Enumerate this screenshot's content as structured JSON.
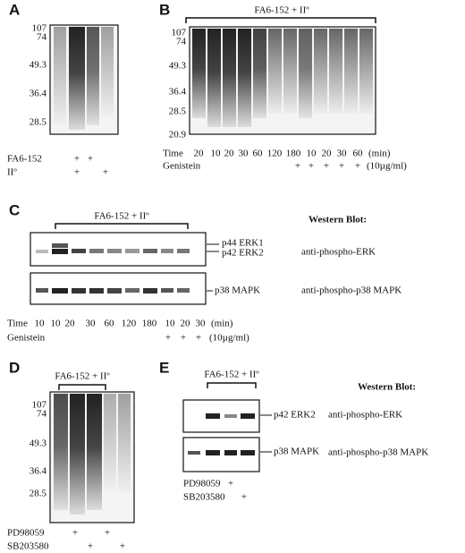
{
  "panels": {
    "a": {
      "label": "A",
      "markers": [
        "107",
        "74",
        "49.3",
        "36.4",
        "28.5"
      ],
      "rows": [
        {
          "label": "FA6-152",
          "marks": [
            "+",
            "+"
          ]
        },
        {
          "label": "IIº",
          "marks": [
            "+",
            "+"
          ]
        }
      ]
    },
    "b": {
      "label": "B",
      "title": "FA6-152 + IIº",
      "markers": [
        "107",
        "74",
        "49.3",
        "36.4",
        "28.5",
        "20.9"
      ],
      "time_label": "Time",
      "times": [
        "20",
        "10",
        "20",
        "30",
        "60",
        "120",
        "180",
        "10",
        "20",
        "30",
        "60"
      ],
      "time_unit": "(min)",
      "treatment": "Genistein",
      "treatment_marks": [
        "+",
        "+",
        "+",
        "+",
        "+"
      ],
      "dose": "(10µg/ml)"
    },
    "c": {
      "label": "C",
      "title": "FA6-152 + IIº",
      "bands": [
        "p44 ERK1",
        "p42 ERK2",
        "p38 MAPK"
      ],
      "method": "Western Blot:",
      "antibodies": [
        "anti-phospho-ERK",
        "anti-phospho-p38 MAPK"
      ],
      "time_label": "Time",
      "times": [
        "10",
        "10",
        "20",
        "30",
        "60",
        "120",
        "180",
        "10",
        "20",
        "30"
      ],
      "time_unit": "(min)",
      "treatment": "Genistein",
      "treatment_marks": [
        "+",
        "+",
        "+"
      ],
      "dose": "(10µg/ml)"
    },
    "d": {
      "label": "D",
      "title": "FA6-152 + IIº",
      "markers": [
        "107",
        "74",
        "49.3",
        "36.4",
        "28.5"
      ],
      "rows": [
        {
          "label": "PD98059",
          "marks": [
            "+",
            "+"
          ]
        },
        {
          "label": "SB203580",
          "marks": [
            "+",
            "+"
          ]
        }
      ]
    },
    "e": {
      "label": "E",
      "title": "FA6-152 + IIº",
      "bands": [
        "p42 ERK2",
        "p38 MAPK"
      ],
      "method": "Western Blot:",
      "antibodies": [
        "anti-phospho-ERK",
        "anti-phospho-p38 MAPK"
      ],
      "rows": [
        {
          "label": "PD98059",
          "marks": [
            "+"
          ]
        },
        {
          "label": "SB203580",
          "marks": [
            "+"
          ]
        }
      ]
    }
  }
}
